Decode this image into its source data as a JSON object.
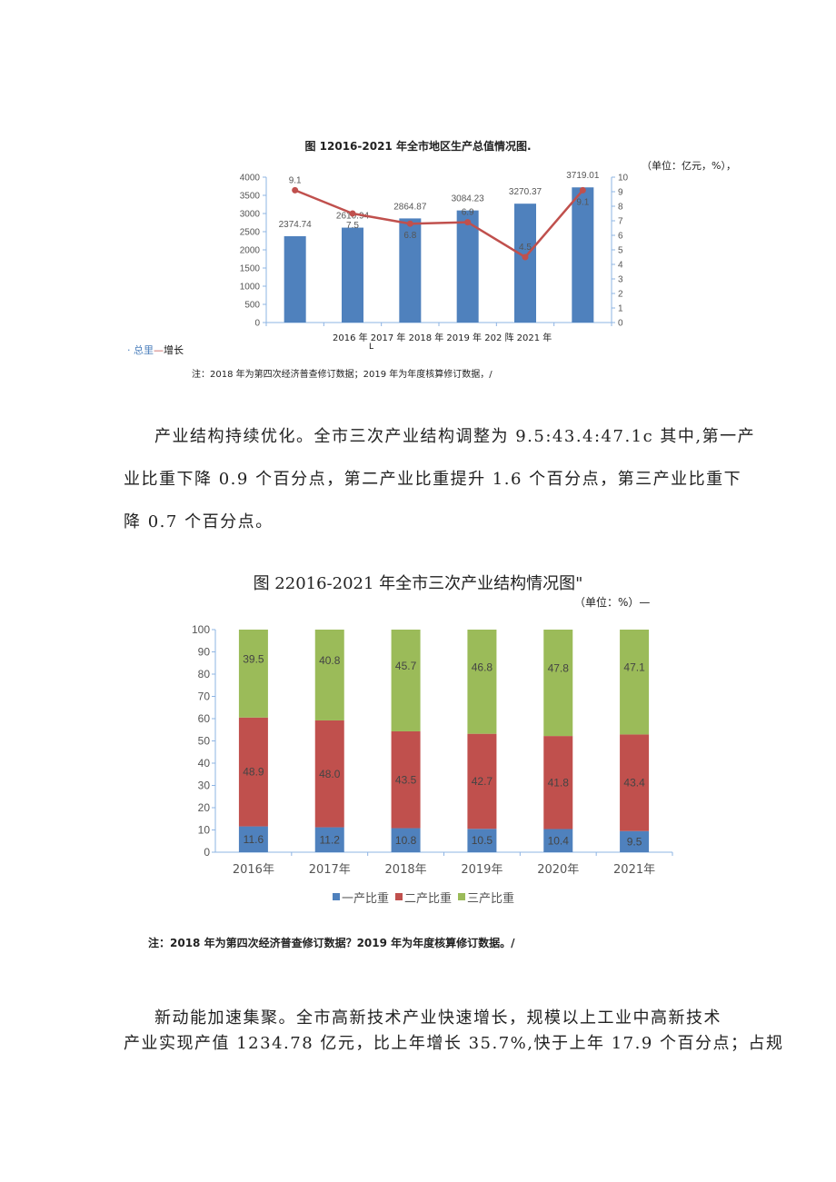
{
  "figure1": {
    "caption": "图 12016-2021 年全市地区生产总值情况图.",
    "unit": "（单位：亿元，%），",
    "x_axis_text": "2016 年 2017 年 2018 年 2019 年 202 阵 2021 年",
    "x_axis_stray": "L",
    "legend_total": "· 总里",
    "legend_line": "—",
    "legend_growth": "增长",
    "note": "注：2018 年为第四次经济普查修订数据；2019 年为年度核算修订数据，/"
  },
  "paragraph1": [
    "产业结构持续优化。全市三次产业结构调整为 9.5:43.4:47.1c 其中,第一产",
    "业比重下降 0.9 个百分点，第二产业比重提升 1.6 个百分点，第三产业比重下",
    "降 0.7 个百分点。"
  ],
  "figure2": {
    "caption": "图 22016-2021 年全市三次产业结构情况图\"",
    "unit": "（单位：%）—",
    "note": "注：2018 年为第四次经济普查修订数据？2019 年为年度核算修订数据。/"
  },
  "paragraph2": [
    "新动能加速集聚。全市高新技术产业快速增长，规模以上工业中高新技术",
    "产业实现产值 1234.78 亿元，比上年增长 35.7%,快于上年 17.9 个百分点；占规"
  ],
  "chart_data": [
    {
      "type": "bar+line",
      "title": "图 12016-2021 年全市地区生产总值情况图.",
      "categories": [
        "2016年",
        "2017年",
        "2018年",
        "2019年",
        "2020年",
        "2021年"
      ],
      "series": [
        {
          "name": "总里",
          "type": "bar",
          "axis": "left",
          "values": [
            2374.74,
            2610.94,
            2864.87,
            3084.23,
            3270.37,
            3719.01
          ],
          "labels": [
            "2374.74",
            "2610.94",
            "2864.87",
            "3084.23",
            "3270.37",
            "3719.01"
          ],
          "color": "#4f81bd"
        },
        {
          "name": "增长",
          "type": "line",
          "axis": "right",
          "values": [
            9.1,
            7.5,
            6.8,
            6.9,
            4.5,
            9.1
          ],
          "labels": [
            "9.1",
            "7.5",
            "6.8",
            "6.9",
            "4.5",
            "9.1"
          ],
          "color": "#c0504d"
        }
      ],
      "ylim_left": [
        0,
        4000
      ],
      "yticks_left": [
        "0",
        "500",
        "1000",
        "1500",
        "2000",
        "2500",
        "3000",
        "3500",
        "4000"
      ],
      "ylim_right": [
        0,
        10
      ],
      "yticks_right": [
        "0",
        "1",
        "2",
        "3",
        "4",
        "5",
        "6",
        "7",
        "8",
        "9",
        "10"
      ],
      "grid": false
    },
    {
      "type": "stacked-bar",
      "title": "图 22016-2021 年全市三次产业结构情况图\"",
      "categories": [
        "2016年",
        "2017年",
        "2018年",
        "2019年",
        "2020年",
        "2021年"
      ],
      "series": [
        {
          "name": "一产比重",
          "values": [
            11.6,
            11.2,
            10.8,
            10.5,
            10.4,
            9.5
          ],
          "labels": [
            "11.6",
            "11.2",
            "10.8",
            "10.5",
            "10.4",
            "9.5"
          ],
          "color": "#4f81bd"
        },
        {
          "name": "二产比重",
          "values": [
            48.9,
            48.0,
            43.5,
            42.7,
            41.8,
            43.4
          ],
          "labels": [
            "48.9",
            "48.0",
            "43.5",
            "42.7",
            "41.8",
            "43.4"
          ],
          "color": "#c0504d"
        },
        {
          "name": "三产比重",
          "values": [
            39.5,
            40.8,
            45.7,
            46.8,
            47.8,
            47.1
          ],
          "labels": [
            "39.5",
            "40.8",
            "45.7",
            "46.8",
            "47.8",
            "47.1"
          ],
          "color": "#9bbb59"
        }
      ],
      "ylim": [
        0,
        100
      ],
      "yticks": [
        "0",
        "10",
        "20",
        "30",
        "40",
        "50",
        "60",
        "70",
        "80",
        "90",
        "100"
      ],
      "legend": "bottom",
      "grid": false
    }
  ]
}
